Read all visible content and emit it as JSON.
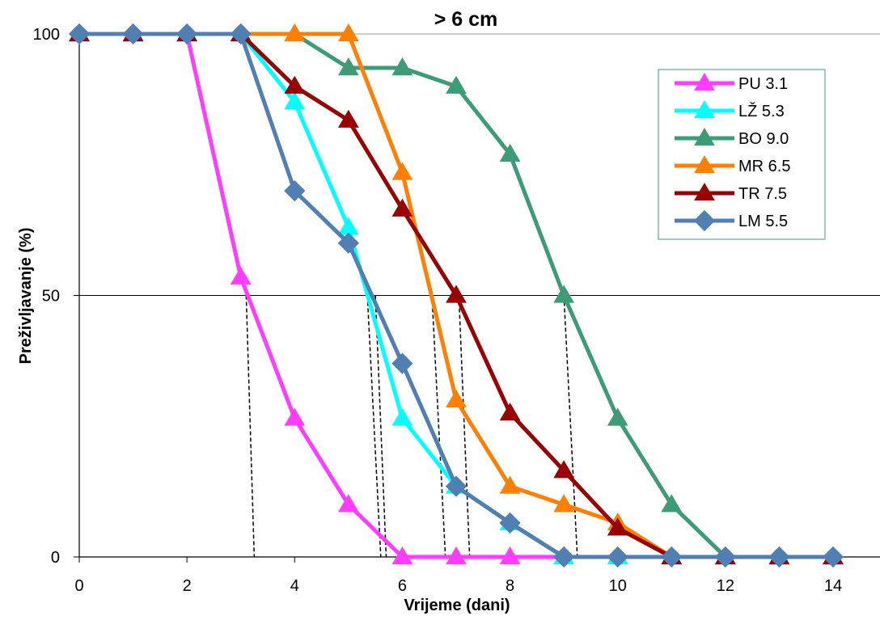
{
  "chart_data": {
    "type": "line",
    "title": "> 6 cm",
    "xlabel": "Vrijeme (dani)",
    "ylabel": "Preživljavanje (%)",
    "xlim": [
      0,
      14
    ],
    "ylim": [
      0,
      100
    ],
    "x_ticks": [
      "0",
      "2",
      "4",
      "6",
      "8",
      "10",
      "12",
      "14"
    ],
    "y_ticks": [
      "0",
      "50",
      "100"
    ],
    "horizontal_gridlines": [
      50,
      100
    ],
    "legend_position": "top-right",
    "series": [
      {
        "name": "PU 3.1",
        "color": "#ff3cff",
        "marker": "triangle",
        "x": [
          0,
          1,
          2,
          3,
          4,
          5,
          6,
          7,
          8,
          9,
          10,
          11,
          12,
          13,
          14
        ],
        "values": [
          100,
          100,
          100,
          53.5,
          26.5,
          10,
          0,
          0,
          0,
          0,
          0,
          0,
          0,
          0,
          0
        ]
      },
      {
        "name": "LŽ 5.3",
        "color": "#00ffff",
        "marker": "triangle",
        "x": [
          0,
          1,
          2,
          3,
          4,
          5,
          6,
          7,
          8,
          9,
          10,
          11,
          12,
          13,
          14
        ],
        "values": [
          100,
          100,
          100,
          100,
          87,
          63,
          26.5,
          13.5,
          6.5,
          0,
          0,
          0,
          0,
          0,
          0
        ]
      },
      {
        "name": "BO 9.0",
        "color": "#3c9c78",
        "marker": "triangle",
        "x": [
          0,
          1,
          2,
          3,
          4,
          5,
          6,
          7,
          8,
          9,
          10,
          11,
          12,
          13,
          14
        ],
        "values": [
          100,
          100,
          100,
          100,
          100,
          93.5,
          93.5,
          90,
          77,
          50,
          26.5,
          10,
          0,
          0,
          0
        ]
      },
      {
        "name": "MR 6.5",
        "color": "#ff8000",
        "marker": "triangle",
        "x": [
          0,
          1,
          2,
          3,
          4,
          5,
          6,
          7,
          8,
          9,
          10,
          11,
          12,
          13,
          14
        ],
        "values": [
          100,
          100,
          100,
          100,
          100,
          100,
          73.5,
          30,
          13.5,
          10,
          6.5,
          0,
          0,
          0,
          0
        ]
      },
      {
        "name": "TR 7.5",
        "color": "#990000",
        "marker": "triangle",
        "x": [
          0,
          1,
          2,
          3,
          4,
          5,
          6,
          7,
          8,
          9,
          10,
          11,
          12,
          13,
          14
        ],
        "values": [
          100,
          100,
          100,
          100,
          90,
          83.5,
          66.5,
          50,
          27.5,
          16.5,
          5.5,
          0,
          0,
          0,
          0
        ]
      },
      {
        "name": "LM 5.5",
        "color": "#4f7fb3",
        "marker": "diamond",
        "x": [
          0,
          1,
          2,
          3,
          4,
          5,
          6,
          7,
          8,
          9,
          10,
          11,
          12,
          13,
          14
        ],
        "values": [
          100,
          100,
          100,
          100,
          70,
          60,
          37,
          13.5,
          6.5,
          0,
          0,
          0,
          0,
          0,
          0
        ]
      }
    ],
    "drop_lines": [
      {
        "top": [
          3.1,
          50
        ],
        "bottom": [
          3.25,
          0
        ]
      },
      {
        "top": [
          5.35,
          50
        ],
        "bottom": [
          5.6,
          0
        ]
      },
      {
        "top": [
          5.5,
          50
        ],
        "bottom": [
          5.7,
          0
        ]
      },
      {
        "top": [
          6.55,
          50
        ],
        "bottom": [
          6.8,
          0
        ]
      },
      {
        "top": [
          7.05,
          50
        ],
        "bottom": [
          7.25,
          0
        ]
      },
      {
        "top": [
          9.0,
          50
        ],
        "bottom": [
          9.25,
          0
        ]
      }
    ]
  }
}
